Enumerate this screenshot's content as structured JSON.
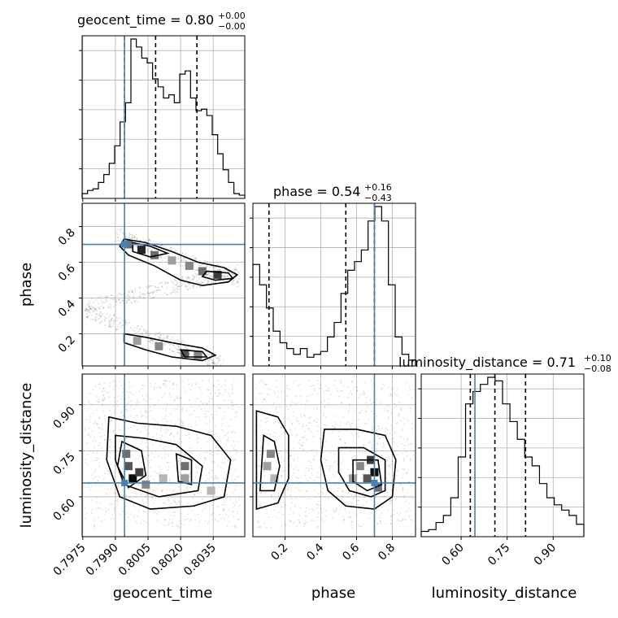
{
  "chart_data": {
    "type": "corner",
    "parameters": [
      "geocent_time",
      "phase",
      "luminosity_distance"
    ],
    "axis_labels": {
      "geocent_time": "geocent_time",
      "phase": "phase",
      "luminosity_distance": "luminosity_distance"
    },
    "ranges": {
      "geocent_time": [
        0.79747,
        0.80495
      ],
      "phase": [
        0.02,
        0.93
      ],
      "luminosity_distance": [
        0.47,
        1.0
      ]
    },
    "truths": {
      "geocent_time": 0.79942,
      "phase": 0.7,
      "luminosity_distance": 0.645
    },
    "titles": [
      {
        "param": "geocent_time",
        "text": "geocent_time = 0.80",
        "sup": "+0.00",
        "sub": "−0.00"
      },
      {
        "param": "phase",
        "text": "phase = 0.54",
        "sup": "+0.16",
        "sub": "−0.43"
      },
      {
        "param": "luminosity_distance",
        "text": "luminosity_distance = 0.71",
        "sup": "+0.10",
        "sub": "−0.08"
      }
    ],
    "quantiles": {
      "geocent_time": [
        0.79942,
        0.80085,
        0.80275
      ],
      "phase": [
        0.11,
        0.54,
        0.7
      ],
      "luminosity_distance": [
        0.63,
        0.71,
        0.81
      ]
    },
    "ticks": {
      "geocent_time": {
        "values": [
          0.7975,
          0.799,
          0.8005,
          0.802,
          0.8035
        ],
        "labels": [
          "0.7975",
          "0.7990",
          "0.8005",
          "0.8020",
          "0.8035"
        ]
      },
      "phase": {
        "values": [
          0.2,
          0.4,
          0.6,
          0.8
        ],
        "labels": [
          "0.2",
          "0.4",
          "0.6",
          "0.8"
        ]
      },
      "luminosity_distance": {
        "values": [
          0.6,
          0.75,
          0.9
        ],
        "labels": [
          "0.60",
          "0.75",
          "0.90"
        ]
      }
    },
    "hist1d": {
      "geocent_time": [
        3,
        5,
        6,
        10,
        15,
        22,
        33,
        48,
        60,
        100,
        95,
        88,
        85,
        75,
        70,
        63,
        65,
        60,
        78,
        80,
        63,
        55,
        56,
        52,
        40,
        28,
        18,
        10,
        3,
        2
      ],
      "phase": [
        35,
        28,
        20,
        12,
        8,
        6,
        4,
        6,
        3,
        4,
        5,
        10,
        15,
        25,
        33,
        36,
        40,
        50,
        55,
        50,
        28,
        10,
        4,
        2
      ],
      "luminosity_distance": [
        3,
        4,
        8,
        12,
        22,
        45,
        75,
        82,
        86,
        90,
        88,
        75,
        65,
        55,
        45,
        40,
        30,
        22,
        18,
        15,
        12,
        7
      ]
    },
    "hist2d": [
      {
        "x": "geocent_time",
        "y": "phase",
        "density": [
          {
            "x": 0.7996,
            "y": 0.7,
            "v": 0.6
          },
          {
            "x": 0.8002,
            "y": 0.67,
            "v": 0.9
          },
          {
            "x": 0.8008,
            "y": 0.64,
            "v": 0.6
          },
          {
            "x": 0.8016,
            "y": 0.61,
            "v": 0.4
          },
          {
            "x": 0.8024,
            "y": 0.58,
            "v": 0.5
          },
          {
            "x": 0.803,
            "y": 0.55,
            "v": 0.6
          },
          {
            "x": 0.8037,
            "y": 0.53,
            "v": 0.8
          },
          {
            "x": 0.8,
            "y": 0.16,
            "v": 0.4
          },
          {
            "x": 0.801,
            "y": 0.13,
            "v": 0.5
          },
          {
            "x": 0.8022,
            "y": 0.09,
            "v": 0.7
          },
          {
            "x": 0.8028,
            "y": 0.08,
            "v": 0.5
          }
        ],
        "contours": [
          [
            [
              0.7994,
              0.73
            ],
            [
              0.8004,
              0.71
            ],
            [
              0.8016,
              0.66
            ],
            [
              0.8028,
              0.6
            ],
            [
              0.804,
              0.57
            ],
            [
              0.8046,
              0.53
            ],
            [
              0.8042,
              0.49
            ],
            [
              0.803,
              0.47
            ],
            [
              0.802,
              0.5
            ],
            [
              0.8008,
              0.58
            ],
            [
              0.7996,
              0.64
            ],
            [
              0.7992,
              0.69
            ]
          ],
          [
            [
              0.7998,
              0.71
            ],
            [
              0.8006,
              0.69
            ],
            [
              0.8014,
              0.65
            ],
            [
              0.8006,
              0.63
            ],
            [
              0.7998,
              0.66
            ]
          ],
          [
            [
              0.8032,
              0.55
            ],
            [
              0.8042,
              0.54
            ],
            [
              0.8044,
              0.51
            ],
            [
              0.8036,
              0.5
            ],
            [
              0.803,
              0.52
            ]
          ],
          [
            [
              0.7994,
              0.2
            ],
            [
              0.8004,
              0.18
            ],
            [
              0.8016,
              0.15
            ],
            [
              0.803,
              0.12
            ],
            [
              0.8036,
              0.08
            ],
            [
              0.803,
              0.05
            ],
            [
              0.8016,
              0.07
            ],
            [
              0.8004,
              0.11
            ],
            [
              0.7994,
              0.15
            ]
          ],
          [
            [
              0.802,
              0.11
            ],
            [
              0.803,
              0.1
            ],
            [
              0.8032,
              0.07
            ],
            [
              0.8022,
              0.07
            ]
          ]
        ]
      },
      {
        "x": "geocent_time",
        "y": "luminosity_distance",
        "density": [
          {
            "x": 0.7996,
            "y": 0.7,
            "v": 0.7
          },
          {
            "x": 0.7998,
            "y": 0.66,
            "v": 1.0
          },
          {
            "x": 0.8001,
            "y": 0.68,
            "v": 0.8
          },
          {
            "x": 0.7995,
            "y": 0.74,
            "v": 0.6
          },
          {
            "x": 0.8004,
            "y": 0.64,
            "v": 0.5
          },
          {
            "x": 0.8012,
            "y": 0.66,
            "v": 0.3
          },
          {
            "x": 0.8022,
            "y": 0.7,
            "v": 0.6
          },
          {
            "x": 0.8022,
            "y": 0.66,
            "v": 0.4
          },
          {
            "x": 0.8034,
            "y": 0.62,
            "v": 0.3
          }
        ],
        "contours": [
          [
            [
              0.7987,
              0.86
            ],
            [
              0.8,
              0.84
            ],
            [
              0.8018,
              0.83
            ],
            [
              0.8034,
              0.8
            ],
            [
              0.8043,
              0.72
            ],
            [
              0.804,
              0.6
            ],
            [
              0.8026,
              0.57
            ],
            [
              0.8006,
              0.56
            ],
            [
              0.7992,
              0.6
            ],
            [
              0.7986,
              0.72
            ]
          ],
          [
            [
              0.799,
              0.8
            ],
            [
              0.8004,
              0.79
            ],
            [
              0.8018,
              0.77
            ],
            [
              0.803,
              0.7
            ],
            [
              0.8028,
              0.62
            ],
            [
              0.801,
              0.6
            ],
            [
              0.7994,
              0.64
            ],
            [
              0.799,
              0.72
            ]
          ],
          [
            [
              0.7993,
              0.78
            ],
            [
              0.8002,
              0.75
            ],
            [
              0.8004,
              0.67
            ],
            [
              0.7996,
              0.63
            ],
            [
              0.7991,
              0.7
            ]
          ],
          [
            [
              0.8018,
              0.74
            ],
            [
              0.8025,
              0.72
            ],
            [
              0.8025,
              0.64
            ],
            [
              0.8019,
              0.65
            ]
          ]
        ]
      },
      {
        "x": "phase",
        "y": "luminosity_distance",
        "density": [
          {
            "x": 0.7,
            "y": 0.68,
            "v": 1.0
          },
          {
            "x": 0.68,
            "y": 0.72,
            "v": 0.8
          },
          {
            "x": 0.66,
            "y": 0.66,
            "v": 0.7
          },
          {
            "x": 0.62,
            "y": 0.7,
            "v": 0.5
          },
          {
            "x": 0.58,
            "y": 0.66,
            "v": 0.4
          },
          {
            "x": 0.72,
            "y": 0.63,
            "v": 0.6
          },
          {
            "x": 0.12,
            "y": 0.74,
            "v": 0.5
          },
          {
            "x": 0.1,
            "y": 0.7,
            "v": 0.4
          },
          {
            "x": 0.14,
            "y": 0.66,
            "v": 0.3
          }
        ],
        "contours": [
          [
            [
              0.04,
              0.88
            ],
            [
              0.16,
              0.86
            ],
            [
              0.22,
              0.8
            ],
            [
              0.22,
              0.66
            ],
            [
              0.16,
              0.58
            ],
            [
              0.04,
              0.56
            ]
          ],
          [
            [
              0.08,
              0.8
            ],
            [
              0.14,
              0.78
            ],
            [
              0.17,
              0.7
            ],
            [
              0.14,
              0.62
            ],
            [
              0.06,
              0.62
            ]
          ],
          [
            [
              0.42,
              0.82
            ],
            [
              0.6,
              0.82
            ],
            [
              0.76,
              0.8
            ],
            [
              0.82,
              0.72
            ],
            [
              0.8,
              0.6
            ],
            [
              0.7,
              0.56
            ],
            [
              0.54,
              0.57
            ],
            [
              0.44,
              0.62
            ],
            [
              0.4,
              0.72
            ]
          ],
          [
            [
              0.5,
              0.76
            ],
            [
              0.64,
              0.76
            ],
            [
              0.76,
              0.72
            ],
            [
              0.76,
              0.62
            ],
            [
              0.68,
              0.6
            ],
            [
              0.56,
              0.62
            ],
            [
              0.5,
              0.68
            ]
          ],
          [
            [
              0.58,
              0.72
            ],
            [
              0.72,
              0.72
            ],
            [
              0.74,
              0.64
            ],
            [
              0.66,
              0.62
            ],
            [
              0.58,
              0.65
            ]
          ]
        ]
      }
    ],
    "scatter_clouds": [
      {
        "x": "geocent_time",
        "y": "phase",
        "segments": [
          [
            0.7976,
            0.35,
            0.8047,
            0.55
          ],
          [
            0.7976,
            0.33,
            0.804,
            0.03
          ],
          [
            0.799,
            0.76,
            0.8047,
            0.5
          ]
        ]
      },
      {
        "x": "geocent_time",
        "y": "luminosity_distance",
        "box": [
          0.7976,
          0.8047,
          0.5,
          0.98
        ]
      },
      {
        "x": "phase",
        "y": "luminosity_distance",
        "box": [
          0.03,
          0.92,
          0.5,
          0.98
        ]
      }
    ]
  }
}
